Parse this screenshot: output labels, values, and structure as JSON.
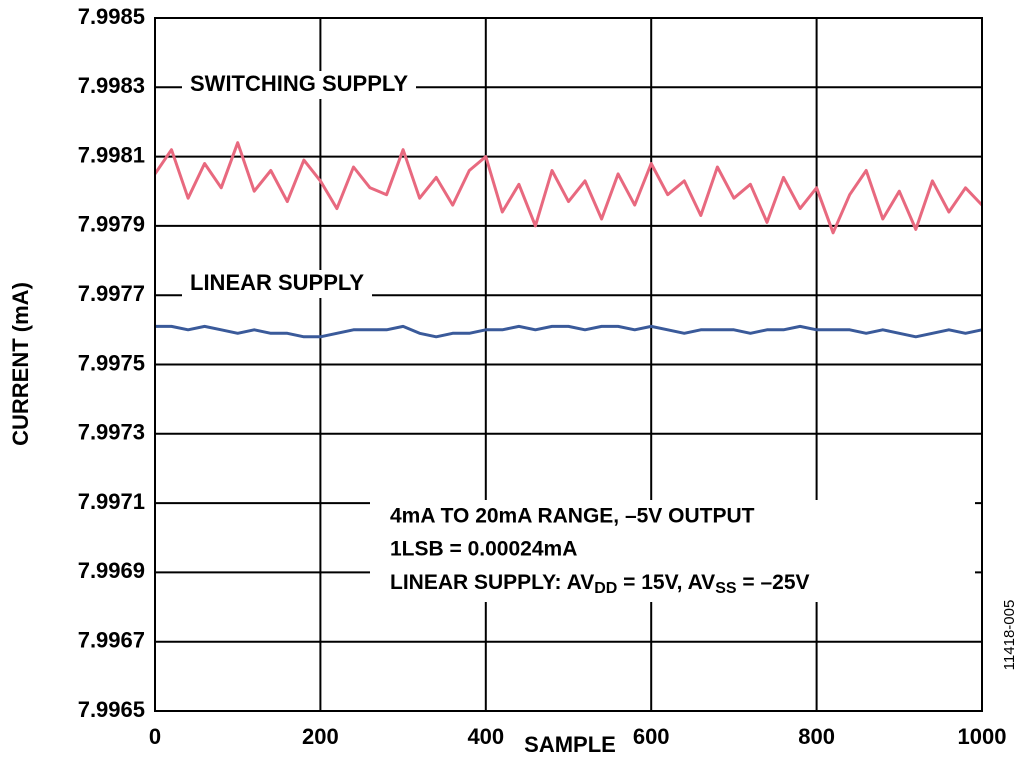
{
  "chart_data": {
    "type": "line",
    "xlabel": "SAMPLE",
    "ylabel": "CURRENT (mA)",
    "x": [
      0,
      20,
      40,
      60,
      80,
      100,
      120,
      140,
      160,
      180,
      200,
      220,
      240,
      260,
      280,
      300,
      320,
      340,
      360,
      380,
      400,
      420,
      440,
      460,
      480,
      500,
      520,
      540,
      560,
      580,
      600,
      620,
      640,
      660,
      680,
      700,
      720,
      740,
      760,
      780,
      800,
      820,
      840,
      860,
      880,
      900,
      920,
      940,
      960,
      980,
      1000
    ],
    "series": [
      {
        "name": "SWITCHING SUPPLY",
        "color": "#e8697f",
        "values": [
          7.99805,
          7.99812,
          7.99798,
          7.99808,
          7.99801,
          7.99814,
          7.998,
          7.99806,
          7.99797,
          7.99809,
          7.99803,
          7.99795,
          7.99807,
          7.99801,
          7.99799,
          7.99812,
          7.99798,
          7.99804,
          7.99796,
          7.99806,
          7.9981,
          7.99794,
          7.99802,
          7.9979,
          7.99806,
          7.99797,
          7.99803,
          7.99792,
          7.99805,
          7.99796,
          7.99808,
          7.99799,
          7.99803,
          7.99793,
          7.99807,
          7.99798,
          7.99802,
          7.99791,
          7.99804,
          7.99795,
          7.99801,
          7.99788,
          7.99799,
          7.99806,
          7.99792,
          7.998,
          7.99789,
          7.99803,
          7.99794,
          7.99801,
          7.99796
        ]
      },
      {
        "name": "LINEAR SUPPLY",
        "color": "#3a5a9a",
        "values": [
          7.99761,
          7.99761,
          7.9976,
          7.99761,
          7.9976,
          7.99759,
          7.9976,
          7.99759,
          7.99759,
          7.99758,
          7.99758,
          7.99759,
          7.9976,
          7.9976,
          7.9976,
          7.99761,
          7.99759,
          7.99758,
          7.99759,
          7.99759,
          7.9976,
          7.9976,
          7.99761,
          7.9976,
          7.99761,
          7.99761,
          7.9976,
          7.99761,
          7.99761,
          7.9976,
          7.99761,
          7.9976,
          7.99759,
          7.9976,
          7.9976,
          7.9976,
          7.99759,
          7.9976,
          7.9976,
          7.99761,
          7.9976,
          7.9976,
          7.9976,
          7.99759,
          7.9976,
          7.99759,
          7.99758,
          7.99759,
          7.9976,
          7.99759,
          7.9976
        ]
      }
    ],
    "xlim": [
      0,
      1000
    ],
    "xticks": [
      0,
      200,
      400,
      600,
      800,
      1000
    ],
    "ylim": [
      7.9965,
      7.9985
    ],
    "yticks": [
      7.9965,
      7.9967,
      7.9969,
      7.9971,
      7.9973,
      7.9975,
      7.9977,
      7.9979,
      7.9981,
      7.9983,
      7.9985
    ],
    "grid": true,
    "annotation": [
      "4mA TO 20mA RANGE, –5V OUTPUT",
      "1LSB = 0.00024mA",
      [
        "LINEAR SUPPLY: AV",
        "DD",
        " = 15V, AV",
        "SS",
        " = –25V"
      ]
    ],
    "figure_id": "11418-005"
  }
}
